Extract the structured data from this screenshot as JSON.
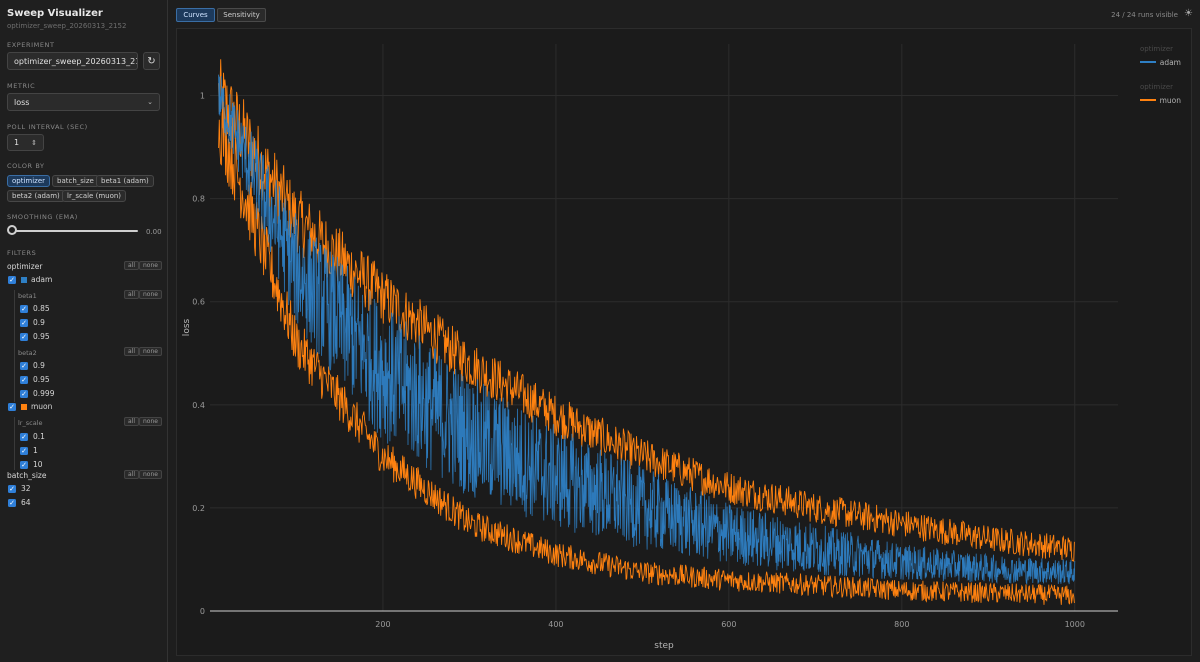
{
  "app": {
    "title": "Sweep Visualizer",
    "subtitle": "optimizer_sweep_20260313_2152"
  },
  "experiment": {
    "label": "EXPERIMENT",
    "value": "optimizer_sweep_20260313_215",
    "refresh_icon": "refresh-icon"
  },
  "metric": {
    "label": "METRIC",
    "value": "loss"
  },
  "poll": {
    "label": "POLL INTERVAL (SEC)",
    "value": "1"
  },
  "color_by": {
    "label": "COLOR BY",
    "options": [
      "optimizer",
      "batch_size",
      "beta1 (adam)",
      "beta2 (adam)",
      "lr_scale (muon)"
    ],
    "selected": "optimizer"
  },
  "smoothing": {
    "label": "SMOOTHING (EMA)",
    "value": "0.00",
    "fraction": 0.0
  },
  "filters": {
    "label": "FILTERS",
    "all_label": "all",
    "none_label": "none",
    "optimizer": {
      "label": "optimizer",
      "adam": "adam",
      "muon": "muon"
    },
    "beta1": {
      "label": "beta1",
      "values": [
        "0.85",
        "0.9",
        "0.95"
      ]
    },
    "beta2": {
      "label": "beta2",
      "values": [
        "0.9",
        "0.95",
        "0.999"
      ]
    },
    "lr_scale": {
      "label": "lr_scale",
      "values": [
        "0.1",
        "1",
        "10"
      ]
    },
    "batch_size": {
      "label": "batch_size",
      "values": [
        "32",
        "64"
      ]
    }
  },
  "tabs": [
    "Curves",
    "Sensitivity"
  ],
  "runs_visible": "24 / 24 runs visible",
  "colors": {
    "adam": "#2e7fc4",
    "muon": "#ff8210",
    "accent": "#3a6ea5"
  },
  "chart_data": {
    "type": "line",
    "xlabel": "step",
    "ylabel": "loss",
    "xlim": [
      0,
      1050
    ],
    "ylim": [
      0,
      1.1
    ],
    "xticks": [
      200,
      400,
      600,
      800,
      1000
    ],
    "yticks": [
      0,
      0.2,
      0.4,
      0.6,
      0.8,
      1
    ],
    "ytick_labels": [
      "0",
      "0.2",
      "0.4",
      "0.6",
      "0.8",
      "1"
    ],
    "grid": true,
    "legend_placement": "right",
    "legend": [
      {
        "title": "optimizer",
        "name": "adam"
      },
      {
        "title": "optimizer",
        "name": "muon"
      }
    ],
    "series": [
      {
        "name": "adam",
        "band": true,
        "x": [
          10,
          100,
          200,
          300,
          400,
          500,
          600,
          700,
          800,
          900,
          1000
        ],
        "lower": [
          0.95,
          0.55,
          0.33,
          0.22,
          0.16,
          0.12,
          0.09,
          0.07,
          0.06,
          0.055,
          0.05
        ],
        "upper": [
          1.05,
          0.77,
          0.6,
          0.46,
          0.36,
          0.28,
          0.21,
          0.17,
          0.13,
          0.11,
          0.1
        ]
      },
      {
        "name": "muon",
        "band": false,
        "x": [
          10,
          100,
          200,
          300,
          400,
          500,
          600,
          700,
          800,
          900,
          1000
        ],
        "y": [
          1.0,
          0.76,
          0.61,
          0.48,
          0.38,
          0.3,
          0.24,
          0.2,
          0.17,
          0.14,
          0.12
        ]
      },
      {
        "name": "muon",
        "band": false,
        "x": [
          10,
          100,
          200,
          300,
          400,
          500,
          600,
          700,
          800,
          900,
          1000
        ],
        "y": [
          0.95,
          0.52,
          0.3,
          0.17,
          0.11,
          0.075,
          0.06,
          0.05,
          0.04,
          0.035,
          0.03
        ]
      }
    ]
  }
}
